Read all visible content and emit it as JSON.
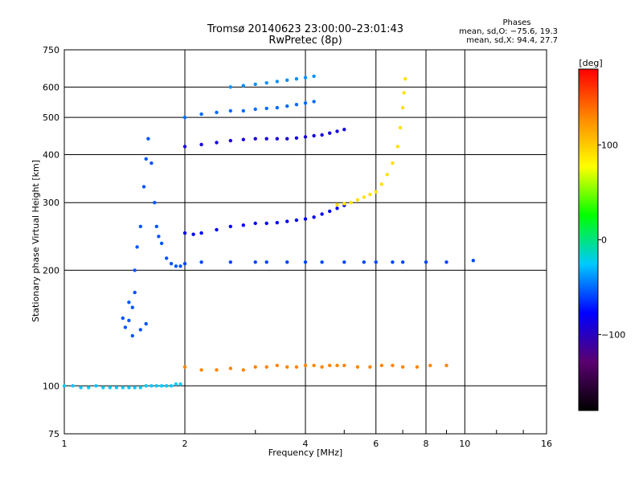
{
  "chart_data": {
    "type": "scatter",
    "title": "Tromsø 20140623 23:00:00–23:01:43",
    "subtitle": "RwPretec (8p)",
    "xlabel": "Frequency [MHz]",
    "ylabel": "Stationary phase Virtual Height [km]",
    "x_scale": "log",
    "y_scale": "log",
    "xlim": [
      1,
      16
    ],
    "ylim": [
      75,
      750
    ],
    "x_ticks": [
      1,
      2,
      4,
      6,
      8,
      10,
      16
    ],
    "x_ticklabels": [
      "1",
      "2",
      "4",
      "6",
      "8",
      "10",
      "16"
    ],
    "y_ticks": [
      75,
      100,
      200,
      300,
      400,
      500,
      600,
      750
    ],
    "y_ticklabels": [
      "75",
      "100",
      "200",
      "300",
      "400",
      "500",
      "600",
      "750"
    ],
    "grid": true,
    "phase_stats": {
      "heading": "Phases",
      "o_line": "mean, sd,O: −75.6, 19.3",
      "x_line": "mean, sd,X:  94.4, 27.7"
    },
    "colorbar": {
      "label": "[deg]",
      "range": [
        -180,
        180
      ],
      "tick_values": [
        100,
        0,
        -100
      ],
      "tick_labels": [
        "100",
        "0",
        "−100"
      ],
      "colors": [
        "#000000",
        "#5a0070",
        "#0000ff",
        "#00c8ff",
        "#00ff00",
        "#ffff00",
        "#ff8800",
        "#ff0000"
      ]
    },
    "series": [
      {
        "trace": "base-100",
        "color_deg": -25,
        "points": [
          [
            1.0,
            100
          ],
          [
            1.05,
            100
          ],
          [
            1.1,
            99
          ],
          [
            1.15,
            99
          ],
          [
            1.2,
            100
          ],
          [
            1.25,
            99
          ],
          [
            1.3,
            99
          ],
          [
            1.35,
            99
          ],
          [
            1.4,
            99
          ],
          [
            1.45,
            99
          ],
          [
            1.5,
            99
          ],
          [
            1.55,
            99
          ],
          [
            1.6,
            100
          ],
          [
            1.65,
            100
          ],
          [
            1.7,
            100
          ],
          [
            1.75,
            100
          ],
          [
            1.8,
            100
          ],
          [
            1.85,
            100
          ],
          [
            1.9,
            101
          ],
          [
            1.95,
            101
          ]
        ]
      },
      {
        "trace": "spread-F-spike",
        "color_deg": -55,
        "points": [
          [
            1.4,
            150
          ],
          [
            1.42,
            142
          ],
          [
            1.45,
            148
          ],
          [
            1.48,
            160
          ],
          [
            1.5,
            200
          ],
          [
            1.52,
            230
          ],
          [
            1.55,
            260
          ],
          [
            1.58,
            330
          ],
          [
            1.6,
            390
          ],
          [
            1.62,
            440
          ],
          [
            1.65,
            380
          ],
          [
            1.68,
            300
          ],
          [
            1.7,
            260
          ],
          [
            1.72,
            245
          ],
          [
            1.75,
            235
          ],
          [
            1.8,
            215
          ],
          [
            1.85,
            208
          ],
          [
            1.9,
            205
          ],
          [
            1.95,
            205
          ],
          [
            1.5,
            175
          ],
          [
            1.45,
            165
          ],
          [
            1.55,
            140
          ],
          [
            1.6,
            145
          ],
          [
            1.48,
            135
          ]
        ]
      },
      {
        "trace": "f-trace-250",
        "color_deg": -80,
        "points": [
          [
            2.0,
            250
          ],
          [
            2.1,
            248
          ],
          [
            2.2,
            250
          ],
          [
            2.4,
            255
          ],
          [
            2.6,
            260
          ],
          [
            2.8,
            262
          ],
          [
            3.0,
            265
          ],
          [
            3.2,
            265
          ],
          [
            3.4,
            266
          ],
          [
            3.6,
            268
          ],
          [
            3.8,
            270
          ],
          [
            4.0,
            272
          ],
          [
            4.2,
            275
          ],
          [
            4.4,
            280
          ],
          [
            4.6,
            285
          ],
          [
            4.8,
            290
          ],
          [
            5.0,
            295
          ]
        ]
      },
      {
        "trace": "f-trace-bright",
        "color_deg": 90,
        "points": [
          [
            4.8,
            296
          ],
          [
            5.0,
            298
          ],
          [
            5.2,
            300
          ],
          [
            5.4,
            305
          ],
          [
            5.6,
            310
          ],
          [
            5.8,
            315
          ],
          [
            6.0,
            320
          ],
          [
            6.2,
            335
          ],
          [
            6.4,
            355
          ],
          [
            6.6,
            380
          ],
          [
            6.8,
            420
          ],
          [
            6.9,
            470
          ],
          [
            7.0,
            530
          ],
          [
            7.05,
            580
          ],
          [
            7.1,
            630
          ]
        ]
      },
      {
        "trace": "multi-hop-430",
        "color_deg": -90,
        "points": [
          [
            2.0,
            420
          ],
          [
            2.2,
            425
          ],
          [
            2.4,
            430
          ],
          [
            2.6,
            435
          ],
          [
            2.8,
            438
          ],
          [
            3.0,
            440
          ],
          [
            3.2,
            440
          ],
          [
            3.4,
            440
          ],
          [
            3.6,
            440
          ],
          [
            3.8,
            442
          ],
          [
            4.0,
            445
          ],
          [
            4.2,
            448
          ],
          [
            4.4,
            450
          ],
          [
            4.6,
            455
          ],
          [
            4.8,
            460
          ],
          [
            5.0,
            465
          ]
        ]
      },
      {
        "trace": "multi-hop-500",
        "color_deg": -50,
        "points": [
          [
            2.0,
            500
          ],
          [
            2.2,
            510
          ],
          [
            2.4,
            515
          ],
          [
            2.6,
            520
          ],
          [
            2.8,
            520
          ],
          [
            3.0,
            525
          ],
          [
            3.2,
            528
          ],
          [
            3.4,
            530
          ],
          [
            3.6,
            535
          ],
          [
            3.8,
            540
          ],
          [
            4.0,
            545
          ],
          [
            4.2,
            550
          ]
        ]
      },
      {
        "trace": "multi-hop-600",
        "color_deg": -40,
        "points": [
          [
            2.6,
            600
          ],
          [
            2.8,
            605
          ],
          [
            3.0,
            610
          ],
          [
            3.2,
            615
          ],
          [
            3.4,
            620
          ],
          [
            3.6,
            625
          ],
          [
            3.8,
            630
          ],
          [
            4.0,
            635
          ],
          [
            4.2,
            640
          ]
        ]
      },
      {
        "trace": "e-layer-110",
        "color_deg": 130,
        "points": [
          [
            2.0,
            112
          ],
          [
            2.2,
            110
          ],
          [
            2.4,
            110
          ],
          [
            2.6,
            111
          ],
          [
            2.8,
            110
          ],
          [
            3.0,
            112
          ],
          [
            3.2,
            112
          ],
          [
            3.4,
            113
          ],
          [
            3.6,
            112
          ],
          [
            3.8,
            112
          ],
          [
            4.0,
            113
          ],
          [
            4.2,
            113
          ],
          [
            4.4,
            112
          ],
          [
            4.6,
            113
          ],
          [
            4.8,
            113
          ],
          [
            5.0,
            113
          ],
          [
            5.4,
            112
          ],
          [
            5.8,
            112
          ],
          [
            6.2,
            113
          ],
          [
            6.6,
            113
          ],
          [
            7.0,
            112
          ],
          [
            7.6,
            112
          ],
          [
            8.2,
            113
          ],
          [
            9.0,
            113
          ]
        ]
      },
      {
        "trace": "e-layer-210",
        "color_deg": -60,
        "points": [
          [
            2.0,
            208
          ],
          [
            2.2,
            210
          ],
          [
            2.6,
            210
          ],
          [
            3.0,
            210
          ],
          [
            3.2,
            210
          ],
          [
            3.6,
            210
          ],
          [
            4.0,
            210
          ],
          [
            4.4,
            210
          ],
          [
            5.0,
            210
          ],
          [
            5.6,
            210
          ],
          [
            6.0,
            210
          ],
          [
            6.6,
            210
          ],
          [
            7.0,
            210
          ],
          [
            8.0,
            210
          ],
          [
            9.0,
            210
          ],
          [
            10.5,
            212
          ]
        ]
      }
    ]
  }
}
